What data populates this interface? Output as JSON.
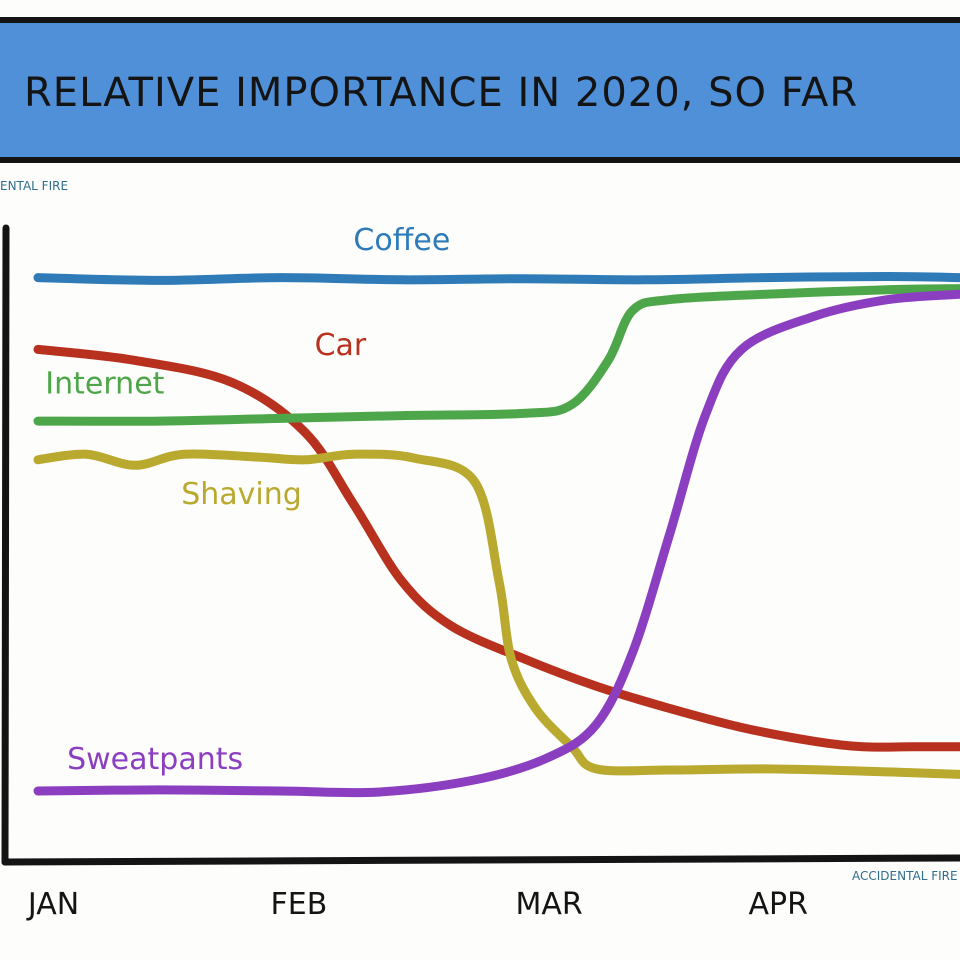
{
  "chart_data": {
    "type": "line",
    "title": "RELATIVE IMPORTANCE IN 2020, SO FAR",
    "credit_top": "ENTAL FIRE",
    "credit_bottom": "ACCIDENTAL FIRE",
    "xlabel": "",
    "ylabel": "",
    "x_ticks": [
      {
        "label": "JAN",
        "x": 0
      },
      {
        "label": "FEB",
        "x": 1
      },
      {
        "label": "MAR",
        "x": 2
      },
      {
        "label": "APR",
        "x": 3
      }
    ],
    "xlim": [
      0,
      3.8
    ],
    "ylim": [
      0,
      100
    ],
    "grid": false,
    "legend": "inline labels",
    "colors": {
      "title_bar": "#4f90d8",
      "ink": "#141414"
    },
    "series": [
      {
        "name": "Coffee",
        "color": "#2e7bb8",
        "points": [
          [
            0.0,
            95
          ],
          [
            0.5,
            94.5
          ],
          [
            1.0,
            95
          ],
          [
            1.5,
            94.6
          ],
          [
            2.0,
            94.8
          ],
          [
            2.5,
            94.6
          ],
          [
            3.0,
            95
          ],
          [
            3.5,
            95.2
          ],
          [
            3.8,
            95
          ]
        ]
      },
      {
        "name": "Car",
        "color": "#b8311f",
        "points": [
          [
            0.0,
            82
          ],
          [
            0.4,
            80
          ],
          [
            0.8,
            76
          ],
          [
            1.1,
            67
          ],
          [
            1.3,
            54
          ],
          [
            1.5,
            40
          ],
          [
            1.7,
            32
          ],
          [
            2.0,
            26
          ],
          [
            2.3,
            21
          ],
          [
            2.6,
            17
          ],
          [
            2.9,
            13.5
          ],
          [
            3.2,
            11
          ],
          [
            3.4,
            10
          ],
          [
            3.6,
            10
          ],
          [
            3.8,
            10
          ]
        ]
      },
      {
        "name": "Internet",
        "color": "#4ea64a",
        "points": [
          [
            0.0,
            69
          ],
          [
            0.5,
            69
          ],
          [
            1.0,
            69.5
          ],
          [
            1.5,
            70
          ],
          [
            2.0,
            70.4
          ],
          [
            2.2,
            72
          ],
          [
            2.35,
            80
          ],
          [
            2.45,
            89
          ],
          [
            2.6,
            91
          ],
          [
            3.0,
            92
          ],
          [
            3.5,
            92.8
          ],
          [
            3.8,
            93
          ]
        ]
      },
      {
        "name": "Shaving",
        "color": "#b9a92f",
        "points": [
          [
            0.0,
            62
          ],
          [
            0.2,
            63
          ],
          [
            0.4,
            61
          ],
          [
            0.6,
            63
          ],
          [
            0.9,
            62.5
          ],
          [
            1.1,
            62
          ],
          [
            1.3,
            63
          ],
          [
            1.55,
            62.3
          ],
          [
            1.8,
            58
          ],
          [
            1.9,
            40
          ],
          [
            1.95,
            26
          ],
          [
            2.05,
            17
          ],
          [
            2.2,
            10
          ],
          [
            2.3,
            6
          ],
          [
            2.6,
            5.8
          ],
          [
            3.0,
            6
          ],
          [
            3.4,
            5.6
          ],
          [
            3.8,
            5
          ]
        ]
      },
      {
        "name": "Sweatpants",
        "color": "#8b3fc0",
        "points": [
          [
            0.0,
            2
          ],
          [
            0.5,
            2.2
          ],
          [
            1.0,
            2
          ],
          [
            1.4,
            1.8
          ],
          [
            1.8,
            4
          ],
          [
            2.1,
            8
          ],
          [
            2.3,
            14
          ],
          [
            2.45,
            27
          ],
          [
            2.6,
            48
          ],
          [
            2.75,
            70
          ],
          [
            2.9,
            82
          ],
          [
            3.2,
            88
          ],
          [
            3.5,
            91
          ],
          [
            3.8,
            92
          ]
        ]
      }
    ],
    "annotations": [
      {
        "series": "Coffee",
        "text": "Coffee",
        "x": 1.3,
        "y": 100
      },
      {
        "series": "Car",
        "text": "Car",
        "x": 1.14,
        "y": 81
      },
      {
        "series": "Internet",
        "text": "Internet",
        "x": 0.03,
        "y": 74
      },
      {
        "series": "Shaving",
        "text": "Shaving",
        "x": 0.59,
        "y": 54
      },
      {
        "series": "Sweatpants",
        "text": "Sweatpants",
        "x": 0.12,
        "y": 6
      }
    ]
  }
}
